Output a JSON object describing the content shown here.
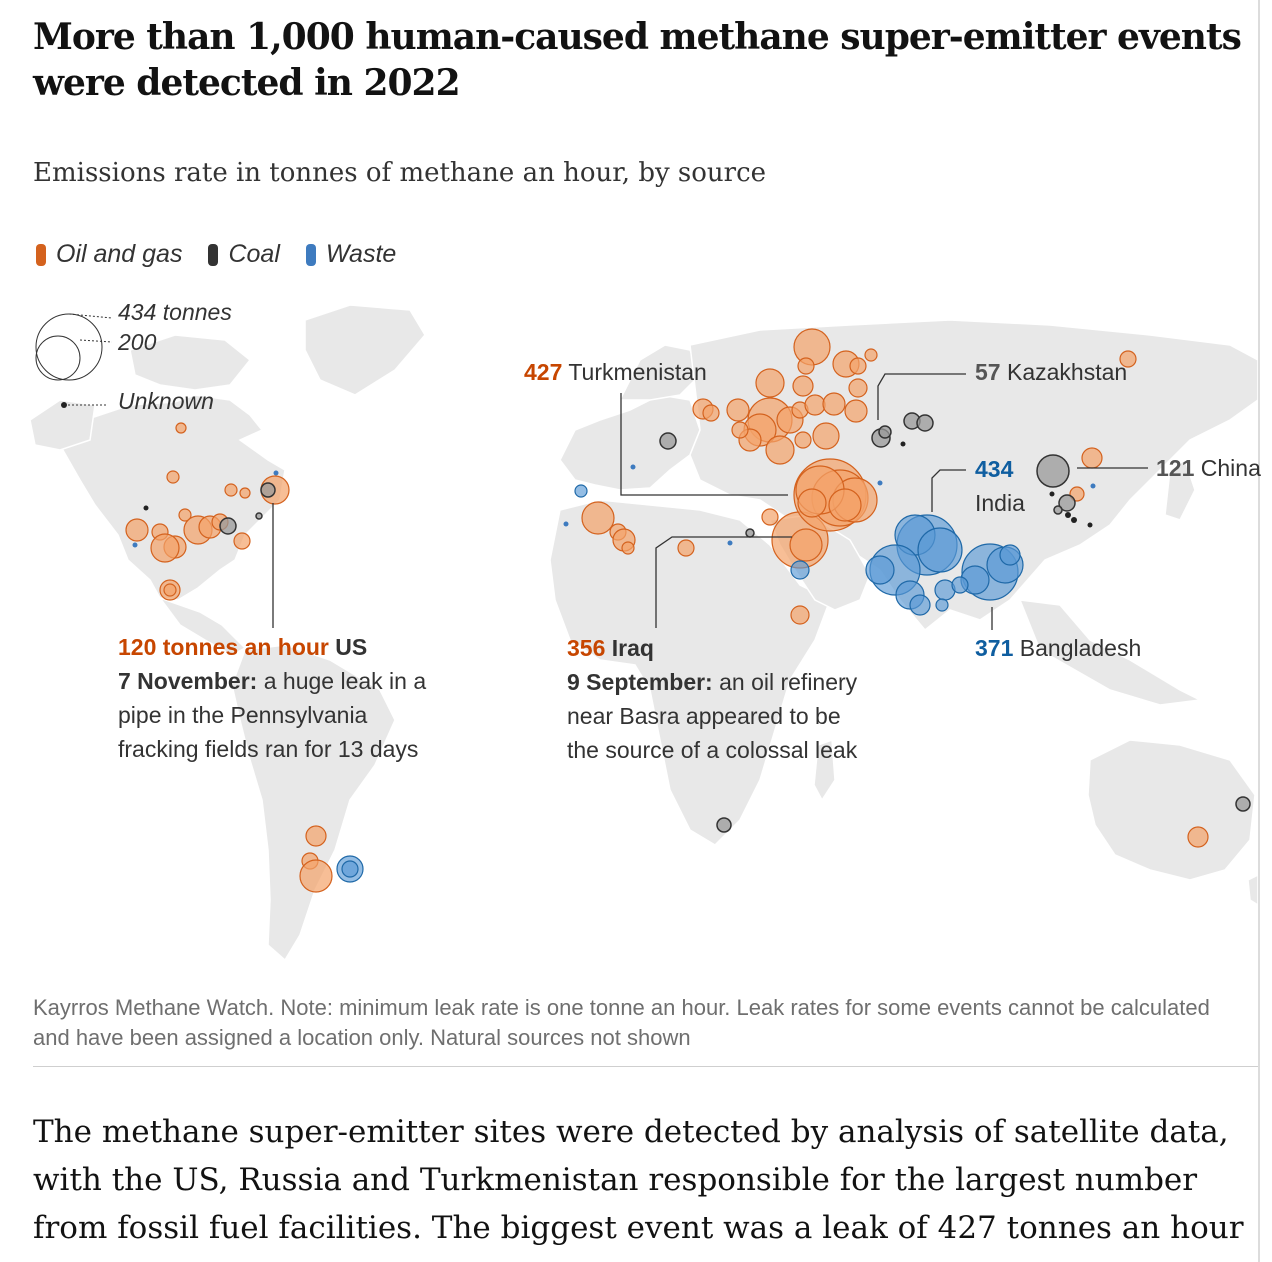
{
  "header": {
    "title": "More than 1,000 human-caused methane super-emitter events were detected in 2022",
    "subtitle": "Emissions rate in tonnes of methane an hour, by source"
  },
  "legend": {
    "items": [
      {
        "label": "Oil and gas",
        "color": "#d4621e"
      },
      {
        "label": "Coal",
        "color": "#333333"
      },
      {
        "label": "Waste",
        "color": "#3e7bbf"
      }
    ]
  },
  "size_key": {
    "large": "434 tonnes",
    "medium": "200",
    "unknown": "Unknown"
  },
  "annotations": {
    "us": {
      "value": "120 tonnes an hour",
      "country": "US",
      "date": "7 November:",
      "line1": "a huge leak in a",
      "line2": "pipe in the Pennsylvania",
      "line3": "fracking fields ran for 13 days"
    },
    "turkmenistan": {
      "value": "427",
      "country": "Turkmenistan"
    },
    "kazakhstan": {
      "value": "57",
      "country": "Kazakhstan"
    },
    "india": {
      "value": "434",
      "country": "India"
    },
    "china": {
      "value": "121",
      "country": "China"
    },
    "bangladesh": {
      "value": "371",
      "country": "Bangladesh"
    },
    "iraq": {
      "value": "356",
      "country": "Iraq",
      "date": "9 September:",
      "line1": "an oil refinery",
      "line2": "near Basra appeared to be",
      "line3": "the source of a colossal leak"
    }
  },
  "source_note": "Kayrros Methane Watch. Note: minimum leak rate is one tonne an hour. Leak rates for some events cannot be calculated and have been assigned a location only. Natural sources not shown",
  "body_text": [
    "The methane super-emitter sites were detected by analysis of satellite data,",
    "with the US, Russia and Turkmenistan responsible for the largest number",
    "from fossil fuel facilities. The biggest event was a leak of 427 tonnes an hour"
  ],
  "colors": {
    "oil_gas": "#d4621e",
    "coal": "#333333",
    "waste": "#3e7bbf",
    "land": "#e8e8e8"
  }
}
